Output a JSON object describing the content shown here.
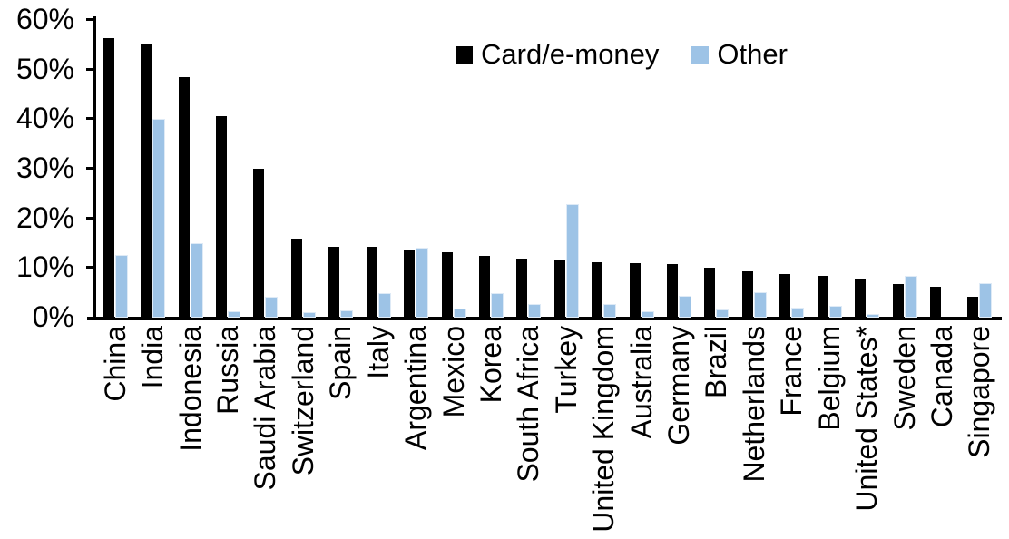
{
  "chart_data": {
    "type": "bar",
    "title": "",
    "xlabel": "",
    "ylabel": "",
    "categories": [
      "China",
      "India",
      "Indonesia",
      "Russia",
      "Saudi Arabia",
      "Switzerland",
      "Spain",
      "Italy",
      "Argentina",
      "Mexico",
      "Korea",
      "South Africa",
      "Turkey",
      "United Kingdom",
      "Australia",
      "Germany",
      "Brazil",
      "Netherlands",
      "France",
      "Belgium",
      "United States*",
      "Sweden",
      "Canada",
      "Singapore"
    ],
    "series": [
      {
        "name": "Card/e-money",
        "color": "#000000",
        "values": [
          56.2,
          55.0,
          48.3,
          40.5,
          29.8,
          15.7,
          14.1,
          14.0,
          13.3,
          12.9,
          12.2,
          11.7,
          11.6,
          11.0,
          10.8,
          10.6,
          9.9,
          9.2,
          8.6,
          8.2,
          7.7,
          6.6,
          6.0,
          4.0
        ]
      },
      {
        "name": "Other",
        "color": "#9DC3E6",
        "values": [
          12.3,
          39.7,
          14.6,
          1.0,
          3.9,
          0.8,
          1.1,
          4.5,
          13.8,
          1.5,
          4.6,
          2.3,
          22.5,
          2.4,
          1.0,
          4.0,
          1.2,
          4.8,
          1.6,
          2.1,
          0.3,
          8.0,
          0.0,
          6.6
        ]
      }
    ],
    "ylim": [
      0,
      60
    ],
    "ytick_values": [
      0,
      10,
      20,
      30,
      40,
      50,
      60
    ],
    "ytick_labels": [
      "0%",
      "10%",
      "20%",
      "30%",
      "40%",
      "50%",
      "60%"
    ],
    "grid": false,
    "legend_position": "top-center"
  },
  "colors": {
    "card": "#000000",
    "other": "#9DC3E6",
    "other_border": "#DEEAF6",
    "axis": "#000000",
    "text": "#000000",
    "background": "#FFFFFF"
  }
}
